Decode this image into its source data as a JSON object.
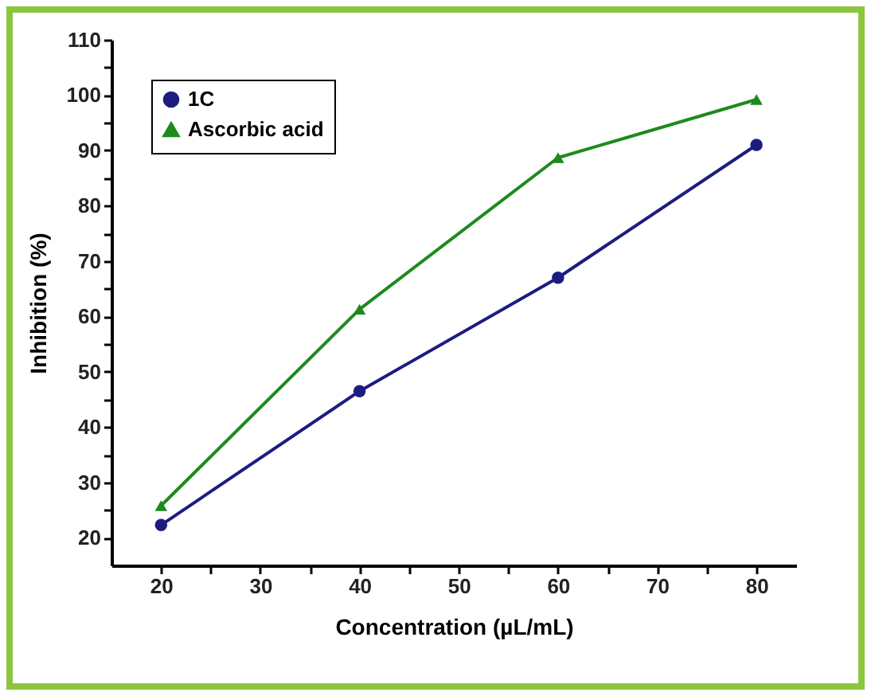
{
  "chart_data": {
    "type": "line",
    "xlabel": "Concentration (µL/mL)",
    "ylabel": "Inhibition (%)",
    "x": [
      20,
      40,
      60,
      80
    ],
    "series": [
      {
        "name": "1C",
        "color": "#1c1c80",
        "marker": "circle",
        "values": [
          22.3,
          46.5,
          67,
          91
        ]
      },
      {
        "name": "Ascorbic acid",
        "color": "#1e8a1e",
        "marker": "triangle",
        "values": [
          25.8,
          61.3,
          88.7,
          99.2
        ]
      }
    ],
    "xlim": [
      15,
      84
    ],
    "ylim": [
      15,
      110
    ],
    "xticks": [
      20,
      {
        "value": 25,
        "label": null
      },
      30,
      {
        "value": 35,
        "label": null
      },
      40,
      {
        "value": 45,
        "label": null
      },
      50,
      {
        "value": 55,
        "label": null
      },
      60,
      {
        "value": 65,
        "label": null
      },
      70,
      {
        "value": 75,
        "label": null
      },
      80
    ],
    "yticks": [
      20,
      {
        "value": 25,
        "label": null
      },
      30,
      {
        "value": 35,
        "label": null
      },
      40,
      {
        "value": 45,
        "label": null
      },
      50,
      {
        "value": 55,
        "label": null
      },
      60,
      {
        "value": 65,
        "label": null
      },
      70,
      {
        "value": 75,
        "label": null
      },
      80,
      {
        "value": 85,
        "label": null
      },
      90,
      {
        "value": 95,
        "label": null
      },
      100,
      {
        "value": 105,
        "label": null
      },
      110
    ],
    "legend": "top left",
    "grid": false,
    "line_style": "solid"
  }
}
